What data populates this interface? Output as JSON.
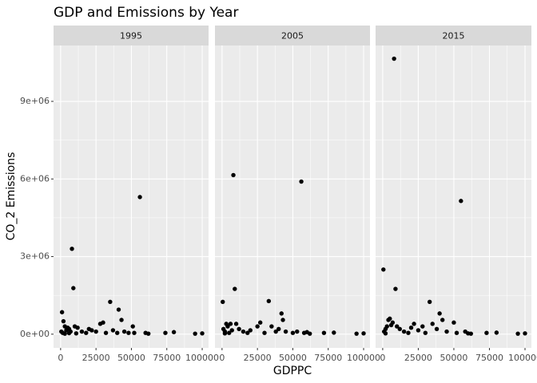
{
  "title": "GDP and Emissions by Year",
  "x_label": "GDPPC",
  "y_label": "CO_2 Emissions",
  "chart_data": [
    {
      "type": "scatter",
      "title": "1995",
      "color": "#000000",
      "grid": true,
      "xlim": [
        -5000,
        104500
      ],
      "ylim": [
        -530000,
        11160000
      ],
      "xticks": [
        0,
        25000,
        50000,
        75000,
        100000
      ],
      "yticks": [
        {
          "value": 0,
          "label": "0e+00"
        },
        {
          "value": 3000000,
          "label": "3e+06"
        },
        {
          "value": 6000000,
          "label": "6e+06"
        },
        {
          "value": 9000000,
          "label": "9e+06"
        }
      ],
      "x": [
        1000,
        2000,
        3000,
        500,
        1500,
        4000,
        5000,
        6000,
        7000,
        8000,
        9000,
        10000,
        12000,
        15000,
        18000,
        20000,
        22000,
        25000,
        28000,
        30000,
        32000,
        35000,
        37000,
        40000,
        41000,
        43000,
        45000,
        48000,
        51000,
        52000,
        56000,
        60000,
        62000,
        74000,
        80000,
        95000,
        100000,
        3000,
        6000,
        11000
      ],
      "values": [
        850000,
        500000,
        300000,
        100000,
        50000,
        150000,
        250000,
        200000,
        100000,
        3300000,
        1780000,
        300000,
        250000,
        100000,
        50000,
        200000,
        150000,
        100000,
        400000,
        450000,
        50000,
        1250000,
        150000,
        50000,
        950000,
        550000,
        100000,
        50000,
        300000,
        50000,
        5300000,
        50000,
        20000,
        50000,
        80000,
        20000,
        30000,
        20000,
        40000,
        30000
      ]
    },
    {
      "type": "scatter",
      "title": "2005",
      "color": "#000000",
      "grid": true,
      "xlim": [
        -5000,
        104500
      ],
      "ylim": [
        -530000,
        11160000
      ],
      "xticks": [
        0,
        25000,
        50000,
        75000,
        100000
      ],
      "yticks": [
        {
          "value": 0,
          "label": "0e+00"
        },
        {
          "value": 3000000,
          "label": "3e+06"
        },
        {
          "value": 6000000,
          "label": "6e+06"
        },
        {
          "value": 9000000,
          "label": "9e+06"
        }
      ],
      "x": [
        500,
        1000,
        2000,
        3000,
        4000,
        6000,
        7000,
        8000,
        9000,
        10000,
        12000,
        15000,
        18000,
        20000,
        25000,
        27000,
        30000,
        33000,
        35000,
        38000,
        40000,
        42000,
        43000,
        45000,
        50000,
        53000,
        56000,
        58000,
        60000,
        62000,
        72000,
        79000,
        95000,
        100000,
        2000,
        5000
      ],
      "values": [
        1250000,
        200000,
        100000,
        400000,
        300000,
        400000,
        150000,
        6150000,
        1750000,
        400000,
        200000,
        100000,
        50000,
        150000,
        300000,
        450000,
        50000,
        1280000,
        300000,
        100000,
        200000,
        800000,
        550000,
        100000,
        50000,
        100000,
        5900000,
        50000,
        80000,
        20000,
        50000,
        60000,
        20000,
        30000,
        30000,
        50000
      ]
    },
    {
      "type": "scatter",
      "title": "2015",
      "color": "#000000",
      "grid": true,
      "xlim": [
        -5000,
        104500
      ],
      "ylim": [
        -530000,
        11160000
      ],
      "xticks": [
        0,
        25000,
        50000,
        75000,
        100000
      ],
      "yticks": [
        {
          "value": 0,
          "label": "0e+00"
        },
        {
          "value": 3000000,
          "label": "3e+06"
        },
        {
          "value": 6000000,
          "label": "6e+06"
        },
        {
          "value": 9000000,
          "label": "9e+06"
        }
      ],
      "x": [
        500,
        1000,
        2000,
        3000,
        4000,
        5000,
        6000,
        7000,
        8000,
        9000,
        10000,
        12000,
        15000,
        18000,
        20000,
        22000,
        25000,
        28000,
        30000,
        33000,
        35000,
        38000,
        40000,
        42000,
        45000,
        50000,
        52000,
        55000,
        58000,
        60000,
        62000,
        73000,
        80000,
        95000,
        100000,
        2000
      ],
      "values": [
        2500000,
        100000,
        200000,
        300000,
        550000,
        600000,
        350000,
        450000,
        10650000,
        1750000,
        300000,
        200000,
        100000,
        50000,
        250000,
        400000,
        150000,
        300000,
        50000,
        1250000,
        400000,
        200000,
        800000,
        550000,
        100000,
        450000,
        50000,
        5150000,
        100000,
        30000,
        20000,
        50000,
        60000,
        20000,
        30000,
        30000
      ]
    }
  ]
}
